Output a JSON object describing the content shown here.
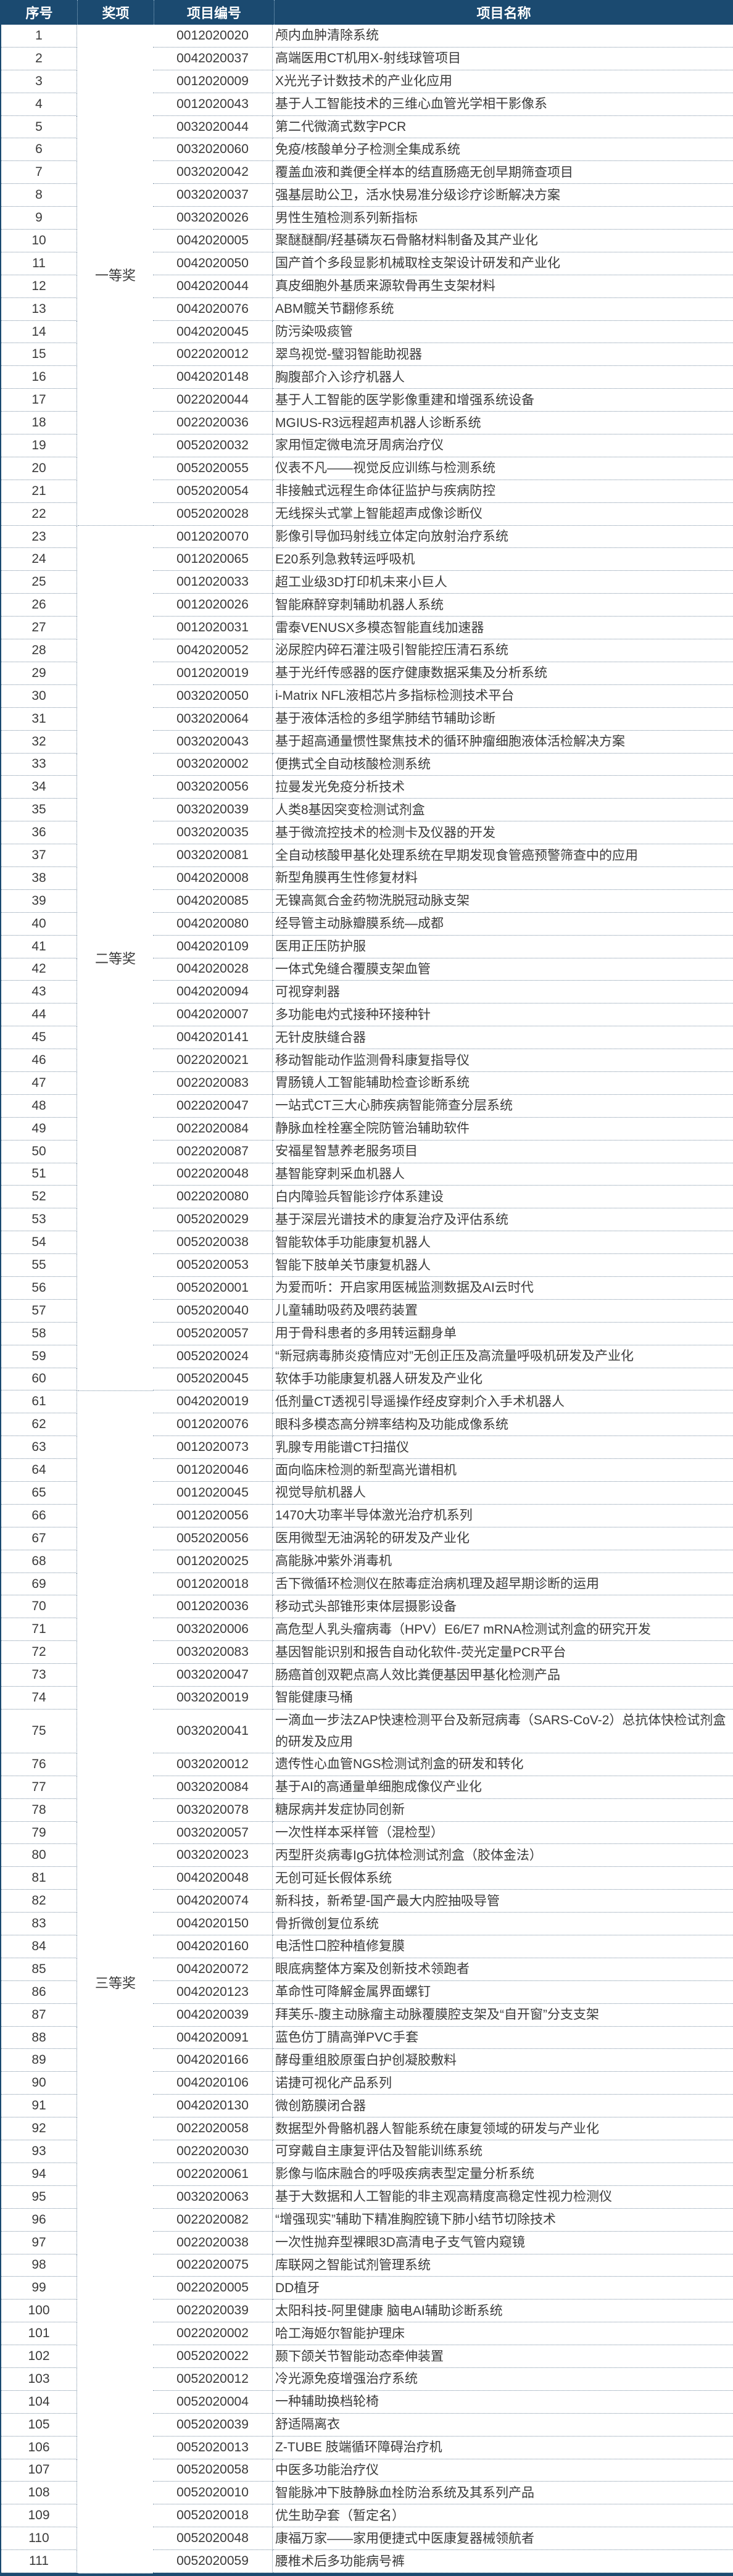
{
  "header": {
    "no": "序号",
    "award": "奖项",
    "code": "项目编号",
    "name": "项目名称"
  },
  "colors": {
    "header_bg": "#1b4a70",
    "header_text": "#ffffff"
  },
  "awards": [
    {
      "label": "一等奖",
      "from": 1,
      "to": 22
    },
    {
      "label": "二等奖",
      "from": 23,
      "to": 60
    },
    {
      "label": "三等奖",
      "from": 61,
      "to": 111
    }
  ],
  "rows": [
    [
      "1",
      "0012020020",
      "颅内血肿清除系统"
    ],
    [
      "2",
      "0042020037",
      "高端医用CT机用X-射线球管项目"
    ],
    [
      "3",
      "0012020009",
      "X光光子计数技术的产业化应用"
    ],
    [
      "4",
      "0012020043",
      "基于人工智能技术的三维心血管光学相干影像系"
    ],
    [
      "5",
      "0032020044",
      "第二代微滴式数字PCR"
    ],
    [
      "6",
      "0032020060",
      "免疫/核酸单分子检测全集成系统"
    ],
    [
      "7",
      "0032020042",
      "覆盖血液和粪便全样本的结直肠癌无创早期筛查项目"
    ],
    [
      "8",
      "0032020037",
      "强基层助公卫，活水快易准分级诊疗诊断解决方案"
    ],
    [
      "9",
      "0032020026",
      "男性生殖检测系列新指标"
    ],
    [
      "10",
      "0042020005",
      "聚醚醚酮/羟基磷灰石骨骼材料制备及其产业化"
    ],
    [
      "11",
      "0042020050",
      "国产首个多段显影机械取栓支架设计研发和产业化"
    ],
    [
      "12",
      "0042020044",
      "真皮细胞外基质来源软骨再生支架材料"
    ],
    [
      "13",
      "0042020076",
      "ABM髋关节翻修系统"
    ],
    [
      "14",
      "0042020045",
      "防污染吸痰管"
    ],
    [
      "15",
      "0022020012",
      "翠鸟视觉-璧羽智能助视器"
    ],
    [
      "16",
      "0042020148",
      "胸腹部介入诊疗机器人"
    ],
    [
      "17",
      "0022020044",
      "基于人工智能的医学影像重建和增强系统设备"
    ],
    [
      "18",
      "0022020036",
      "MGIUS-R3远程超声机器人诊断系统"
    ],
    [
      "19",
      "0052020032",
      "家用恒定微电流牙周病治疗仪"
    ],
    [
      "20",
      "0052020055",
      "仪表不凡——视觉反应训练与检测系统"
    ],
    [
      "21",
      "0052020054",
      "非接触式远程生命体征监护与疾病防控"
    ],
    [
      "22",
      "0052020028",
      "无线探头式掌上智能超声成像诊断仪"
    ],
    [
      "23",
      "0012020070",
      "影像引导伽玛射线立体定向放射治疗系统"
    ],
    [
      "24",
      "0012020065",
      "E20系列急救转运呼吸机"
    ],
    [
      "25",
      "0012020033",
      "超工业级3D打印机未来小巨人"
    ],
    [
      "26",
      "0012020026",
      "智能麻醉穿刺辅助机器人系统"
    ],
    [
      "27",
      "0012020031",
      "雷泰VENUSX多模态智能直线加速器"
    ],
    [
      "28",
      "0042020052",
      "泌尿腔内碎石灌注吸引智能控压清石系统"
    ],
    [
      "29",
      "0012020019",
      "基于光纤传感器的医疗健康数据采集及分析系统"
    ],
    [
      "30",
      "0032020050",
      "i-Matrix NFL液相芯片多指标检测技术平台"
    ],
    [
      "31",
      "0032020064",
      "基于液体活检的多组学肺结节辅助诊断"
    ],
    [
      "32",
      "0032020043",
      "基于超高通量惯性聚焦技术的循环肿瘤细胞液体活检解决方案"
    ],
    [
      "33",
      "0032020002",
      "便携式全自动核酸检测系统"
    ],
    [
      "34",
      "0032020056",
      "拉曼发光免疫分析技术"
    ],
    [
      "35",
      "0032020039",
      "人类8基因突变检测试剂盒"
    ],
    [
      "36",
      "0032020035",
      "基于微流控技术的检测卡及仪器的开发"
    ],
    [
      "37",
      "0032020081",
      "全自动核酸甲基化处理系统在早期发现食管癌预警筛查中的应用"
    ],
    [
      "38",
      "0042020008",
      "新型角膜再生性修复材料"
    ],
    [
      "39",
      "0042020085",
      "无镍高氮合金药物洗脱冠动脉支架"
    ],
    [
      "40",
      "0042020080",
      "经导管主动脉瓣膜系统—成都"
    ],
    [
      "41",
      "0042020109",
      "医用正压防护服"
    ],
    [
      "42",
      "0042020028",
      "一体式免缝合覆膜支架血管"
    ],
    [
      "43",
      "0042020094",
      "可视穿刺器"
    ],
    [
      "44",
      "0042020007",
      "多功能电灼式接种环接种针"
    ],
    [
      "45",
      "0042020141",
      "无针皮肤缝合器"
    ],
    [
      "46",
      "0022020021",
      "移动智能动作监测骨科康复指导仪"
    ],
    [
      "47",
      "0022020083",
      "胃肠镜人工智能辅助检查诊断系统"
    ],
    [
      "48",
      "0022020047",
      "一站式CT三大心肺疾病智能筛查分层系统"
    ],
    [
      "49",
      "0022020084",
      "静脉血栓栓塞全院防管治辅助软件"
    ],
    [
      "50",
      "0022020087",
      "安福星智慧养老服务项目"
    ],
    [
      "51",
      "0022020048",
      "基智能穿刺采血机器人"
    ],
    [
      "52",
      "0022020080",
      "白内障验兵智能诊疗体系建设"
    ],
    [
      "53",
      "0052020029",
      "基于深层光谱技术的康复治疗及评估系统"
    ],
    [
      "54",
      "0052020038",
      "智能软体手功能康复机器人"
    ],
    [
      "55",
      "0052020053",
      "智能下肢单关节康复机器人"
    ],
    [
      "56",
      "0052020001",
      "为爱而听：开启家用医械监测数据及AI云时代"
    ],
    [
      "57",
      "0052020040",
      "儿童辅助吸药及喂药装置"
    ],
    [
      "58",
      "0052020057",
      "用于骨科患者的多用转运翻身单"
    ],
    [
      "59",
      "0052020024",
      "“新冠病毒肺炎疫情应对”无创正压及高流量呼吸机研发及产业化"
    ],
    [
      "60",
      "0052020045",
      "软体手功能康复机器人研发及产业化"
    ],
    [
      "61",
      "0042020019",
      "低剂量CT透视引导遥操作经皮穿刺介入手术机器人"
    ],
    [
      "62",
      "0012020076",
      "眼科多模态高分辨率结构及功能成像系统"
    ],
    [
      "63",
      "0012020073",
      "乳腺专用能谱CT扫描仪"
    ],
    [
      "64",
      "0012020046",
      "面向临床检测的新型高光谱相机"
    ],
    [
      "65",
      "0012020045",
      "视觉导航机器人"
    ],
    [
      "66",
      "0012020056",
      "1470大功率半导体激光治疗机系列"
    ],
    [
      "67",
      "0052020056",
      "医用微型无油涡轮的研发及产业化"
    ],
    [
      "68",
      "0012020025",
      "高能脉冲紫外消毒机"
    ],
    [
      "69",
      "0012020018",
      "舌下微循环检测仪在脓毒症治病机理及超早期诊断的运用"
    ],
    [
      "70",
      "0012020036",
      "移动式头部锥形束体层摄影设备"
    ],
    [
      "71",
      "0032020006",
      "高危型人乳头瘤病毒（HPV）E6/E7 mRNA检测试剂盒的研究开发"
    ],
    [
      "72",
      "0032020083",
      "基因智能识别和报告自动化软件-荧光定量PCR平台"
    ],
    [
      "73",
      "0032020047",
      "肠癌首创双靶点高人效比粪便基因甲基化检测产品"
    ],
    [
      "74",
      "0032020019",
      "智能健康马桶"
    ],
    [
      "75",
      "0032020041",
      "一滴血一步法ZAP快速检测平台及新冠病毒（SARS-CoV-2）总抗体快检试剂盒的研发及应用"
    ],
    [
      "76",
      "0032020012",
      "遗传性心血管NGS检测试剂盒的研发和转化"
    ],
    [
      "77",
      "0032020084",
      "基于AI的高通量单细胞成像仪产业化"
    ],
    [
      "78",
      "0032020078",
      "糖尿病并发症协同创新"
    ],
    [
      "79",
      "0032020057",
      "一次性样本采样管（混检型）"
    ],
    [
      "80",
      "0032020023",
      "丙型肝炎病毒IgG抗体检测试剂盒（胶体金法）"
    ],
    [
      "81",
      "0042020048",
      "无创可延长假体系统"
    ],
    [
      "82",
      "0042020074",
      "新科技，新希望-国产最大内腔抽吸导管"
    ],
    [
      "83",
      "0042020150",
      "骨折微创复位系统"
    ],
    [
      "84",
      "0042020160",
      "电活性口腔种植修复膜"
    ],
    [
      "85",
      "0042020072",
      "眼底病整体方案及创新技术领跑者"
    ],
    [
      "86",
      "0042020123",
      "革命性可降解金属界面螺钉"
    ],
    [
      "87",
      "0042020039",
      "拜芙乐-腹主动脉瘤主动脉覆膜腔支架及“自开窗”分支支架"
    ],
    [
      "88",
      "0042020091",
      "蓝色仿丁腈高弹PVC手套"
    ],
    [
      "89",
      "0042020166",
      "酵母重组胶原蛋白护创凝胶敷料"
    ],
    [
      "90",
      "0042020106",
      "诺捷可视化产品系列"
    ],
    [
      "91",
      "0042020130",
      "微创筋膜闭合器"
    ],
    [
      "92",
      "0022020058",
      "数据型外骨骼机器人智能系统在康复领域的研发与产业化"
    ],
    [
      "93",
      "0022020030",
      "可穿戴自主康复评估及智能训练系统"
    ],
    [
      "94",
      "0022020061",
      "影像与临床融合的呼吸疾病表型定量分析系统"
    ],
    [
      "95",
      "0032020063",
      "基于大数据和人工智能的非主观高精度高稳定性视力检测仪"
    ],
    [
      "96",
      "0022020082",
      "“增强现实”辅助下精准胸腔镜下肺小结节切除技术"
    ],
    [
      "97",
      "0022020038",
      "一次性抛弃型裸眼3D高清电子支气管内窥镜"
    ],
    [
      "98",
      "0022020075",
      "库联网之智能试剂管理系统"
    ],
    [
      "99",
      "0022020005",
      "DD植牙"
    ],
    [
      "100",
      "0022020039",
      "太阳科技-阿里健康 脑电AI辅助诊断系统"
    ],
    [
      "101",
      "0022020002",
      "哈工海姬尔智能护理床"
    ],
    [
      "102",
      "0052020022",
      "颞下颌关节智能动态牵伸装置"
    ],
    [
      "103",
      "0052020012",
      "冷光源免疫增强治疗系统"
    ],
    [
      "104",
      "0052020004",
      "一种辅助换档轮椅"
    ],
    [
      "105",
      "0052020039",
      "舒适隔离衣"
    ],
    [
      "106",
      "0052020013",
      "Z-TUBE 肢端循环障碍治疗机"
    ],
    [
      "107",
      "0052020058",
      "中医多功能治疗仪"
    ],
    [
      "108",
      "0052020010",
      "智能脉冲下肢静脉血栓防治系统及其系列产品"
    ],
    [
      "109",
      "0052020018",
      "优生助孕套（暂定名）"
    ],
    [
      "110",
      "0052020048",
      "康福万家——家用便捷式中医康复器械领航者"
    ],
    [
      "111",
      "0052020059",
      "腰椎术后多功能病号裤"
    ]
  ]
}
